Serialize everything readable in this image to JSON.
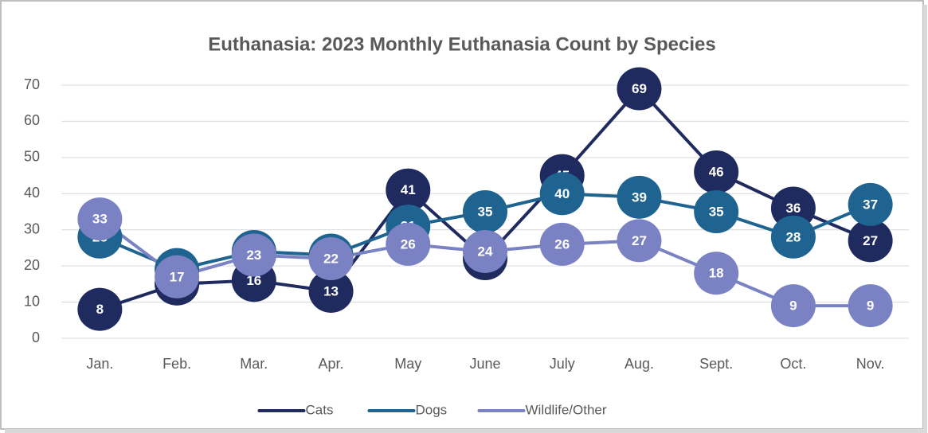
{
  "chart_data": {
    "type": "line",
    "title": "Euthanasia: 2023 Monthly Euthanasia Count by Species",
    "categories": [
      "Jan.",
      "Feb.",
      "Mar.",
      "Apr.",
      "May",
      "June",
      "July",
      "Aug.",
      "Sept.",
      "Oct.",
      "Nov."
    ],
    "series": [
      {
        "name": "Cats",
        "color": "#1f2a5e",
        "values": [
          8,
          15,
          16,
          13,
          41,
          22,
          45,
          69,
          46,
          36,
          27
        ]
      },
      {
        "name": "Dogs",
        "color": "#1f6491",
        "values": [
          28,
          19,
          24,
          23,
          31,
          35,
          40,
          39,
          35,
          28,
          37
        ]
      },
      {
        "name": "Wildlife/Other",
        "color": "#7b82c4",
        "values": [
          33,
          17,
          23,
          22,
          26,
          24,
          26,
          27,
          18,
          9,
          9
        ]
      }
    ],
    "ylim": [
      0,
      70
    ],
    "yticks": [
      0,
      10,
      20,
      30,
      40,
      50,
      60,
      70
    ],
    "grid": true,
    "legend": "bottom"
  }
}
